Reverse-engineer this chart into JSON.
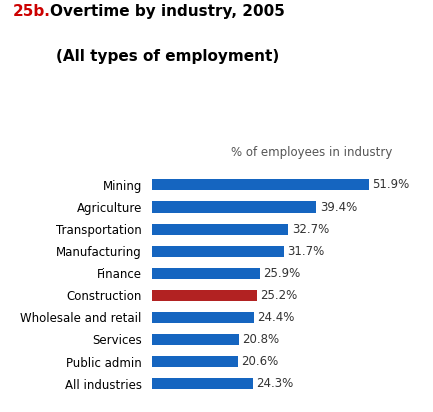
{
  "title_number": "25b.",
  "title_line1": "Overtime by industry, 2005",
  "title_line2": "(All types of employment)",
  "title_number_color": "#cc0000",
  "title_text_color": "#000000",
  "xlabel": "% of employees in industry",
  "categories": [
    "All industries",
    "Public admin",
    "Services",
    "Wholesale and retail",
    "Construction",
    "Finance",
    "Manufacturing",
    "Transportation",
    "Agriculture",
    "Mining"
  ],
  "values": [
    24.3,
    20.6,
    20.8,
    24.4,
    25.2,
    25.9,
    31.7,
    32.7,
    39.4,
    51.9
  ],
  "bar_colors": [
    "#1565C0",
    "#1565C0",
    "#1565C0",
    "#1565C0",
    "#B22222",
    "#1565C0",
    "#1565C0",
    "#1565C0",
    "#1565C0",
    "#1565C0"
  ],
  "value_labels": [
    "24.3%",
    "20.6%",
    "20.8%",
    "24.4%",
    "25.2%",
    "25.9%",
    "31.7%",
    "32.7%",
    "39.4%",
    "51.9%"
  ],
  "xlim": [
    0,
    60
  ],
  "bar_height": 0.5,
  "label_fontsize": 8.5,
  "tick_fontsize": 8.5,
  "xlabel_fontsize": 8.5,
  "background_color": "#ffffff",
  "title_fontsize": 11
}
